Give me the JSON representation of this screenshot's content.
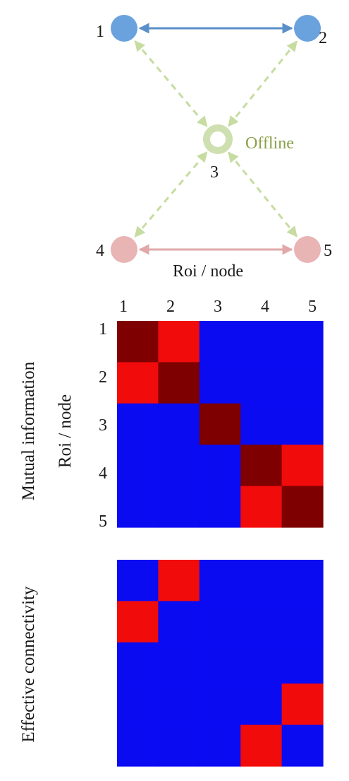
{
  "graph": {
    "nodes": [
      {
        "id": "1",
        "label": "1",
        "group": "blue"
      },
      {
        "id": "2",
        "label": "2",
        "group": "blue"
      },
      {
        "id": "3",
        "label": "3",
        "group": "green",
        "status": "Offline"
      },
      {
        "id": "4",
        "label": "4",
        "group": "pink"
      },
      {
        "id": "5",
        "label": "5",
        "group": "pink"
      }
    ],
    "edges": [
      {
        "from": "1",
        "to": "2",
        "style": "solid",
        "color": "#5b8fc9"
      },
      {
        "from": "4",
        "to": "5",
        "style": "solid",
        "color": "#e2a8a8"
      },
      {
        "from": "1",
        "to": "3",
        "style": "dashed",
        "color": "#c6dca0"
      },
      {
        "from": "2",
        "to": "3",
        "style": "dashed",
        "color": "#c6dca0"
      },
      {
        "from": "4",
        "to": "3",
        "style": "dashed",
        "color": "#c6dca0"
      },
      {
        "from": "5",
        "to": "3",
        "style": "dashed",
        "color": "#c6dca0"
      }
    ],
    "axis_caption": "Roi / node"
  },
  "colors": {
    "blue_node": "#6aa2de",
    "green_node": "#cfe0b0",
    "pink_node": "#e8b4b4",
    "offline_text": "#8aa04a",
    "matrix_low": "#0b0bf2",
    "matrix_mid": "#f20b0b",
    "matrix_high": "#7f0000"
  },
  "matrices": {
    "col_labels": [
      "1",
      "2",
      "3",
      "4",
      "5"
    ],
    "row_labels": [
      "1",
      "2",
      "3",
      "4",
      "5"
    ],
    "mutual_information": {
      "title": "Mutual information",
      "axis_label": "Roi / node",
      "values": [
        [
          2,
          1,
          0,
          0,
          0
        ],
        [
          1,
          2,
          0,
          0,
          0
        ],
        [
          0,
          0,
          2,
          0,
          0
        ],
        [
          0,
          0,
          0,
          2,
          1
        ],
        [
          0,
          0,
          0,
          1,
          2
        ]
      ]
    },
    "effective_connectivity": {
      "title": "Effective connectivity",
      "values": [
        [
          0,
          1,
          0,
          0,
          0
        ],
        [
          1,
          0,
          0,
          0,
          0
        ],
        [
          0,
          0,
          0,
          0,
          0
        ],
        [
          0,
          0,
          0,
          0,
          1
        ],
        [
          0,
          0,
          0,
          1,
          0
        ]
      ]
    }
  }
}
